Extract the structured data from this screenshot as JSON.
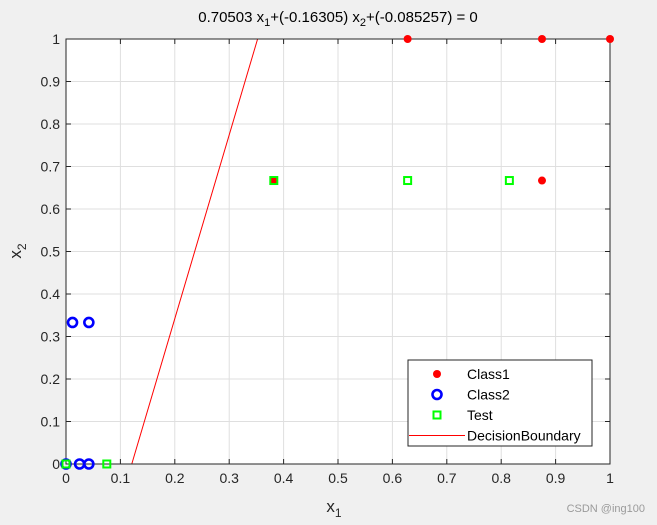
{
  "chart_data": {
    "type": "scatter",
    "title": "0.70503 x_1+(-0.16305) x_2+(-0.085257) = 0",
    "xlabel": "x_1",
    "ylabel": "x_2",
    "xlim": [
      0,
      1
    ],
    "ylim": [
      0,
      1
    ],
    "xticks": [
      0,
      0.1,
      0.2,
      0.3,
      0.4,
      0.5,
      0.6,
      0.7,
      0.8,
      0.9,
      1
    ],
    "yticks": [
      0,
      0.1,
      0.2,
      0.3,
      0.4,
      0.5,
      0.6,
      0.7,
      0.8,
      0.9,
      1
    ],
    "grid": true,
    "legend_position": "bottom-right",
    "series": [
      {
        "name": "Class1",
        "marker": "filled-circle",
        "color": "#ff0000",
        "points": [
          [
            0.628,
            1
          ],
          [
            0.875,
            1
          ],
          [
            1,
            1
          ],
          [
            0.875,
            0.667
          ],
          [
            0.382,
            0.667
          ]
        ]
      },
      {
        "name": "Class2",
        "marker": "open-circle",
        "color": "#0000ff",
        "points": [
          [
            0.012,
            0.333
          ],
          [
            0.042,
            0.333
          ],
          [
            0,
            0
          ],
          [
            0.025,
            0
          ],
          [
            0.042,
            0
          ]
        ]
      },
      {
        "name": "Test",
        "marker": "open-square",
        "color": "#00ff00",
        "points": [
          [
            0.382,
            0.667
          ],
          [
            0.628,
            0.667
          ],
          [
            0.815,
            0.667
          ],
          [
            0,
            0
          ],
          [
            0.075,
            0
          ]
        ]
      },
      {
        "name": "DecisionBoundary",
        "marker": "line",
        "color": "#ff0000",
        "line": [
          [
            0.1209,
            0
          ],
          [
            0.3522,
            1
          ]
        ]
      }
    ]
  },
  "watermark": "CSDN @ing100"
}
